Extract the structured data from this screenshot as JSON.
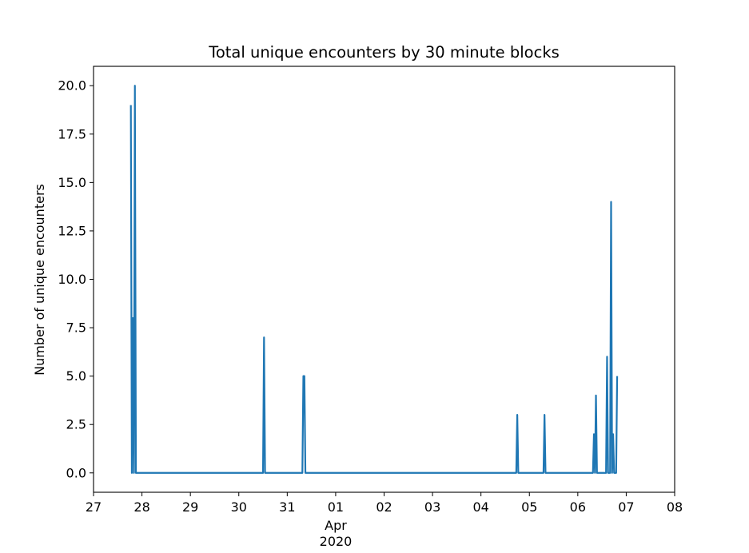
{
  "chart_data": {
    "type": "line",
    "title": "Total unique encounters by 30 minute blocks",
    "xlabel": "",
    "ylabel": "Number of unique encounters",
    "x_axis": {
      "kind": "date",
      "range": [
        "2020-03-27",
        "2020-04-08"
      ],
      "ticks": [
        {
          "date": "2020-03-27",
          "label": "27"
        },
        {
          "date": "2020-03-28",
          "label": "28"
        },
        {
          "date": "2020-03-29",
          "label": "29"
        },
        {
          "date": "2020-03-30",
          "label": "30"
        },
        {
          "date": "2020-03-31",
          "label": "31"
        },
        {
          "date": "2020-04-01",
          "label": "01"
        },
        {
          "date": "2020-04-02",
          "label": "02"
        },
        {
          "date": "2020-04-03",
          "label": "03"
        },
        {
          "date": "2020-04-04",
          "label": "04"
        },
        {
          "date": "2020-04-05",
          "label": "05"
        },
        {
          "date": "2020-04-06",
          "label": "06"
        },
        {
          "date": "2020-04-07",
          "label": "07"
        },
        {
          "date": "2020-04-08",
          "label": "08"
        }
      ],
      "month_label": "Apr",
      "year_label": "2020"
    },
    "y_axis": {
      "range": [
        -1.0,
        21.0
      ],
      "ticks": [
        0.0,
        2.5,
        5.0,
        7.5,
        10.0,
        12.5,
        15.0,
        17.5,
        20.0
      ],
      "tick_labels": [
        "0.0",
        "2.5",
        "5.0",
        "7.5",
        "10.0",
        "12.5",
        "15.0",
        "17.5",
        "20.0"
      ]
    },
    "grid": false,
    "legend": "none",
    "series": [
      {
        "color": "#1f77b4",
        "points": [
          {
            "x": "2020-03-27 18:30",
            "y": 19
          },
          {
            "x": "2020-03-27 19:00",
            "y": 0
          },
          {
            "x": "2020-03-27 19:30",
            "y": 8
          },
          {
            "x": "2020-03-27 20:00",
            "y": 0
          },
          {
            "x": "2020-03-27 20:30",
            "y": 20
          },
          {
            "x": "2020-03-27 21:00",
            "y": 0
          },
          {
            "x": "2020-03-30 12:00",
            "y": 0
          },
          {
            "x": "2020-03-30 12:30",
            "y": 7
          },
          {
            "x": "2020-03-30 13:00",
            "y": 0
          },
          {
            "x": "2020-03-31 07:30",
            "y": 0
          },
          {
            "x": "2020-03-31 08:00",
            "y": 5
          },
          {
            "x": "2020-03-31 08:30",
            "y": 5
          },
          {
            "x": "2020-03-31 09:00",
            "y": 0
          },
          {
            "x": "2020-04-04 17:30",
            "y": 0
          },
          {
            "x": "2020-04-04 18:00",
            "y": 3
          },
          {
            "x": "2020-04-04 18:30",
            "y": 0
          },
          {
            "x": "2020-04-05 07:00",
            "y": 0
          },
          {
            "x": "2020-04-05 07:30",
            "y": 3
          },
          {
            "x": "2020-04-05 08:00",
            "y": 0
          },
          {
            "x": "2020-04-06 07:30",
            "y": 0
          },
          {
            "x": "2020-04-06 08:00",
            "y": 2
          },
          {
            "x": "2020-04-06 08:30",
            "y": 0
          },
          {
            "x": "2020-04-06 09:00",
            "y": 4
          },
          {
            "x": "2020-04-06 09:30",
            "y": 0
          },
          {
            "x": "2020-04-06 14:00",
            "y": 0
          },
          {
            "x": "2020-04-06 14:30",
            "y": 6
          },
          {
            "x": "2020-04-06 15:00",
            "y": 0
          },
          {
            "x": "2020-04-06 16:00",
            "y": 0
          },
          {
            "x": "2020-04-06 16:30",
            "y": 14
          },
          {
            "x": "2020-04-06 17:00",
            "y": 0
          },
          {
            "x": "2020-04-06 17:30",
            "y": 2
          },
          {
            "x": "2020-04-06 18:00",
            "y": 0
          },
          {
            "x": "2020-04-06 19:00",
            "y": 0
          },
          {
            "x": "2020-04-06 19:30",
            "y": 5
          }
        ]
      }
    ]
  }
}
